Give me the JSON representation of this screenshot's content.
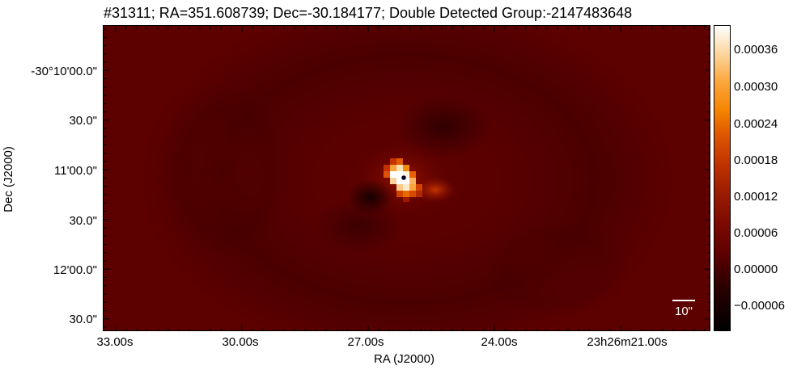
{
  "figure": {
    "title": "#31311;  RA=351.608739;  Dec=-30.184177;  Double Detected Group:-2147483648",
    "xlabel": "RA (J2000)",
    "ylabel": "Dec (J2000)",
    "x_ticks": [
      "33.00s",
      "30.00s",
      "27.00s",
      "24.00s",
      "23h26m21.00s"
    ],
    "y_ticks": [
      "-30°10'00.0\"",
      "30.0\"",
      "11'00.0\"",
      "30.0\"",
      "12'00.0\"",
      "30.0\""
    ],
    "scale_bar_label": "10\"",
    "colorbar": {
      "colormap": "gist_heat",
      "ticks": [
        "0.00036",
        "0.00030",
        "0.00024",
        "0.00018",
        "0.00012",
        "0.00006",
        "0.00000",
        "−0.00006"
      ]
    },
    "background_color": "#5a0000",
    "source_marker_color": "#000020"
  }
}
